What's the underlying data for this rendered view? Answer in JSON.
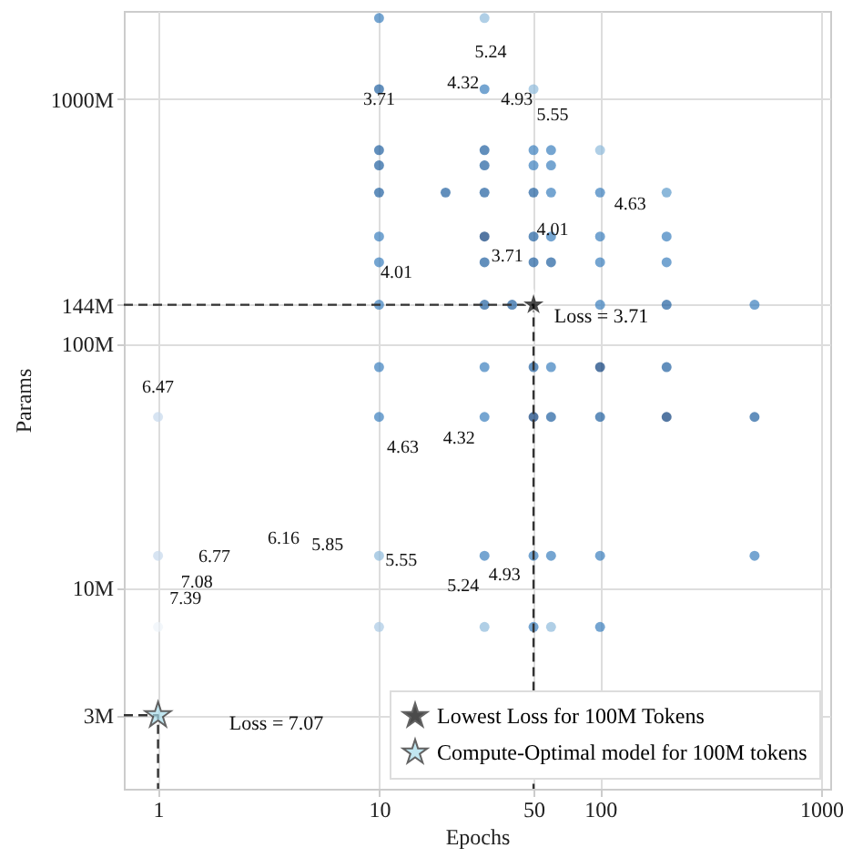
{
  "chart_data": {
    "type": "scatter",
    "xlabel": "Epochs",
    "ylabel": "Params",
    "log": "xy",
    "grid": true,
    "legend": "bottom right",
    "xlim": [
      0.7,
      1100
    ],
    "ylim": [
      1.5,
      2300
    ],
    "xticks": [
      1,
      10,
      50,
      100,
      1000
    ],
    "yticks": [
      {
        "value": 3,
        "label": "3M"
      },
      {
        "value": 10,
        "label": "10M"
      },
      {
        "value": 100,
        "label": "100M"
      },
      {
        "value": 144,
        "label": "144M"
      },
      {
        "value": 1000,
        "label": "1000M"
      }
    ],
    "series": [
      {
        "marker": "circle",
        "x": [
          10,
          30,
          10,
          30,
          50,
          10,
          30,
          50,
          60,
          100,
          10,
          30,
          50,
          60,
          10,
          20,
          30,
          50,
          60,
          100,
          200,
          10,
          30,
          50,
          60,
          100,
          200,
          10,
          30,
          50,
          60,
          100,
          200,
          10,
          30,
          40,
          100,
          200,
          500,
          10,
          30,
          50,
          60,
          100,
          200,
          1,
          10,
          30,
          50,
          60,
          100,
          200,
          500,
          1,
          10,
          30,
          50,
          60,
          100,
          500,
          1,
          10,
          30,
          50,
          60,
          100
        ],
        "values": [
          2150,
          2150,
          1100,
          1100,
          1100,
          619,
          619,
          619,
          619,
          619,
          536,
          536,
          536,
          536,
          415,
          415,
          415,
          415,
          415,
          415,
          415,
          274,
          274,
          274,
          274,
          274,
          274,
          215,
          215,
          215,
          215,
          215,
          215,
          144,
          144,
          144,
          144,
          144,
          144,
          80,
          80,
          80,
          80,
          80,
          80,
          50,
          50,
          50,
          50,
          50,
          50,
          50,
          50,
          13.5,
          13.5,
          13.5,
          13.5,
          13.5,
          13.5,
          13.5,
          6.9,
          6.9,
          6.9,
          6.9,
          6.9,
          6.9
        ],
        "colors": [
          "#3a7fbe",
          "#8fbbdc",
          "#1f5fa0",
          "#3a7fbe",
          "#8fbbdc",
          "#1f5fa0",
          "#1f5fa0",
          "#3a7fbe",
          "#3a7fbe",
          "#8fbbdc",
          "#1f5fa0",
          "#1f5fa0",
          "#3a7fbe",
          "#3a7fbe",
          "#1f5fa0",
          "#1f5fa0",
          "#1f5fa0",
          "#1f5fa0",
          "#3a7fbe",
          "#3a7fbe",
          "#5b9acb",
          "#3a7fbe",
          "#0b3d7a",
          "#1f5fa0",
          "#3a7fbe",
          "#3a7fbe",
          "#3a7fbe",
          "#3a7fbe",
          "#1f5fa0",
          "#1f5fa0",
          "#1f5fa0",
          "#3a7fbe",
          "#3a7fbe",
          "#3a7fbe",
          "#1f5fa0",
          "#1f5fa0",
          "#3a7fbe",
          "#1f5fa0",
          "#3a7fbe",
          "#3a7fbe",
          "#3a7fbe",
          "#1f5fa0",
          "#3a7fbe",
          "#0b3d7a",
          "#1f5fa0",
          "#c6d9ec",
          "#3a7fbe",
          "#3a7fbe",
          "#0b3d7a",
          "#1f5fa0",
          "#1f5fa0",
          "#0b3d7a",
          "#1f5fa0",
          "#c6d9ec",
          "#8fbbdc",
          "#3a7fbe",
          "#3a7fbe",
          "#3a7fbe",
          "#3a7fbe",
          "#3a7fbe",
          "#eef3f9",
          "#a9c9e4",
          "#8fbbdc",
          "#3a7fbe",
          "#8fbbdc",
          "#3a7fbe"
        ]
      },
      {
        "name": "Lowest Loss for 100M Tokens",
        "color": "#000000",
        "marker": "star",
        "x": [
          50
        ],
        "values": [
          144
        ]
      },
      {
        "name": "Compute-Optimal model for 100M tokens",
        "color": "#a8dcea",
        "marker": "star",
        "x": [
          1
        ],
        "values": [
          3
        ]
      },
      {
        "type": "line",
        "color": "#333333",
        "line_style": "dashed",
        "x": [
          0.7,
          50,
          50
        ],
        "values": [
          144,
          144,
          1.5
        ]
      },
      {
        "type": "line",
        "color": "#333333",
        "line_style": "dashed",
        "x": [
          0.7,
          1,
          1
        ],
        "values": [
          3,
          3,
          1.5
        ]
      }
    ],
    "annotations": [
      "Loss = 3.71",
      "Loss = 7.07",
      "5.24",
      "4.32",
      "4.93",
      "5.55",
      "3.71",
      "4.63",
      "4.01",
      "3.71",
      "4.01",
      "6.47",
      "4.63",
      "4.32",
      "6.16",
      "5.85",
      "5.55",
      "5.24",
      "4.93",
      "6.77",
      "7.08",
      "7.39"
    ]
  }
}
